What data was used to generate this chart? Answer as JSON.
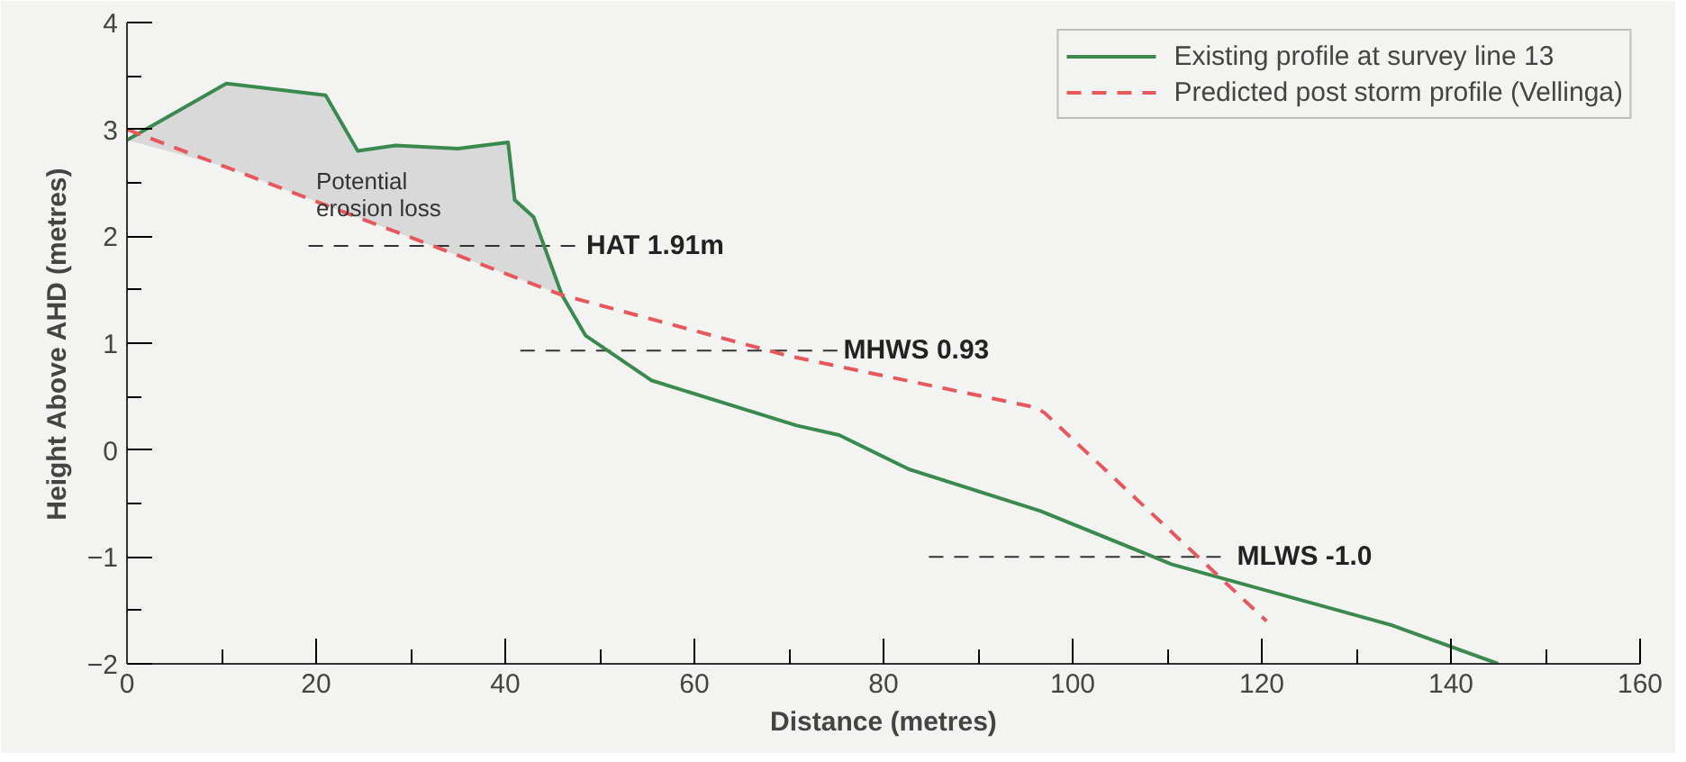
{
  "chart_data": {
    "type": "line",
    "xlabel": "Distance (metres)",
    "ylabel": "Height Above AHD (metres)",
    "xlim": [
      0,
      160
    ],
    "xticks": [
      0,
      20,
      40,
      60,
      80,
      100,
      120,
      140,
      160
    ],
    "ylim": [
      -2,
      4
    ],
    "yticks": [
      -2,
      -1,
      0,
      1,
      2,
      3,
      4
    ],
    "grid": false,
    "legend": "top right",
    "series": [
      {
        "name": "Existing profile at survey line 13",
        "color": "#3a8a4e",
        "line_style": "solid",
        "x": [
          0,
          10.5,
          21,
          24.4,
          28.4,
          35,
          40.3,
          41,
          43,
          46,
          48.5,
          55.5,
          70.8,
          75.3,
          82.7,
          96.6,
          110.5,
          133.8,
          145
        ],
        "values": [
          2.9,
          3.43,
          3.32,
          2.8,
          2.85,
          2.82,
          2.88,
          2.34,
          2.18,
          1.45,
          1.07,
          0.65,
          0.23,
          0.14,
          -0.18,
          -0.57,
          -1.07,
          -1.64,
          -2.0
        ],
        "lower": [
          2.9,
          2.65,
          2.29,
          2.18,
          2.04,
          1.82,
          1.64,
          1.62,
          1.55,
          1.45,
          null,
          null,
          null,
          null,
          null,
          null,
          null,
          null,
          null
        ],
        "upper": [
          2.9,
          3.43,
          3.32,
          2.8,
          2.85,
          2.82,
          2.88,
          2.34,
          2.18,
          1.45,
          null,
          null,
          null,
          null,
          null,
          null,
          null,
          null,
          null
        ]
      },
      {
        "name": "Predicted post storm profile (Vellinga)",
        "color": "#e8575a",
        "line_style": "dashed",
        "x": [
          0,
          46,
          70,
          96,
          97,
          120.5
        ],
        "values": [
          3.0,
          1.45,
          0.88,
          0.4,
          0.35,
          -1.6
        ]
      }
    ],
    "ref_lines": [
      {
        "axis": "y",
        "value": 1.91,
        "label": "HAT  1.91m",
        "color": "#333333",
        "line_style": "dashed"
      },
      {
        "axis": "y",
        "value": 0.93,
        "label": "MHWS  0.93",
        "color": "#333333",
        "line_style": "dashed"
      },
      {
        "axis": "y",
        "value": -1.0,
        "label": "MLWS  -1.0",
        "color": "#333333",
        "line_style": "dashed"
      }
    ],
    "annotations": [
      "Potential\nerosion loss"
    ]
  }
}
